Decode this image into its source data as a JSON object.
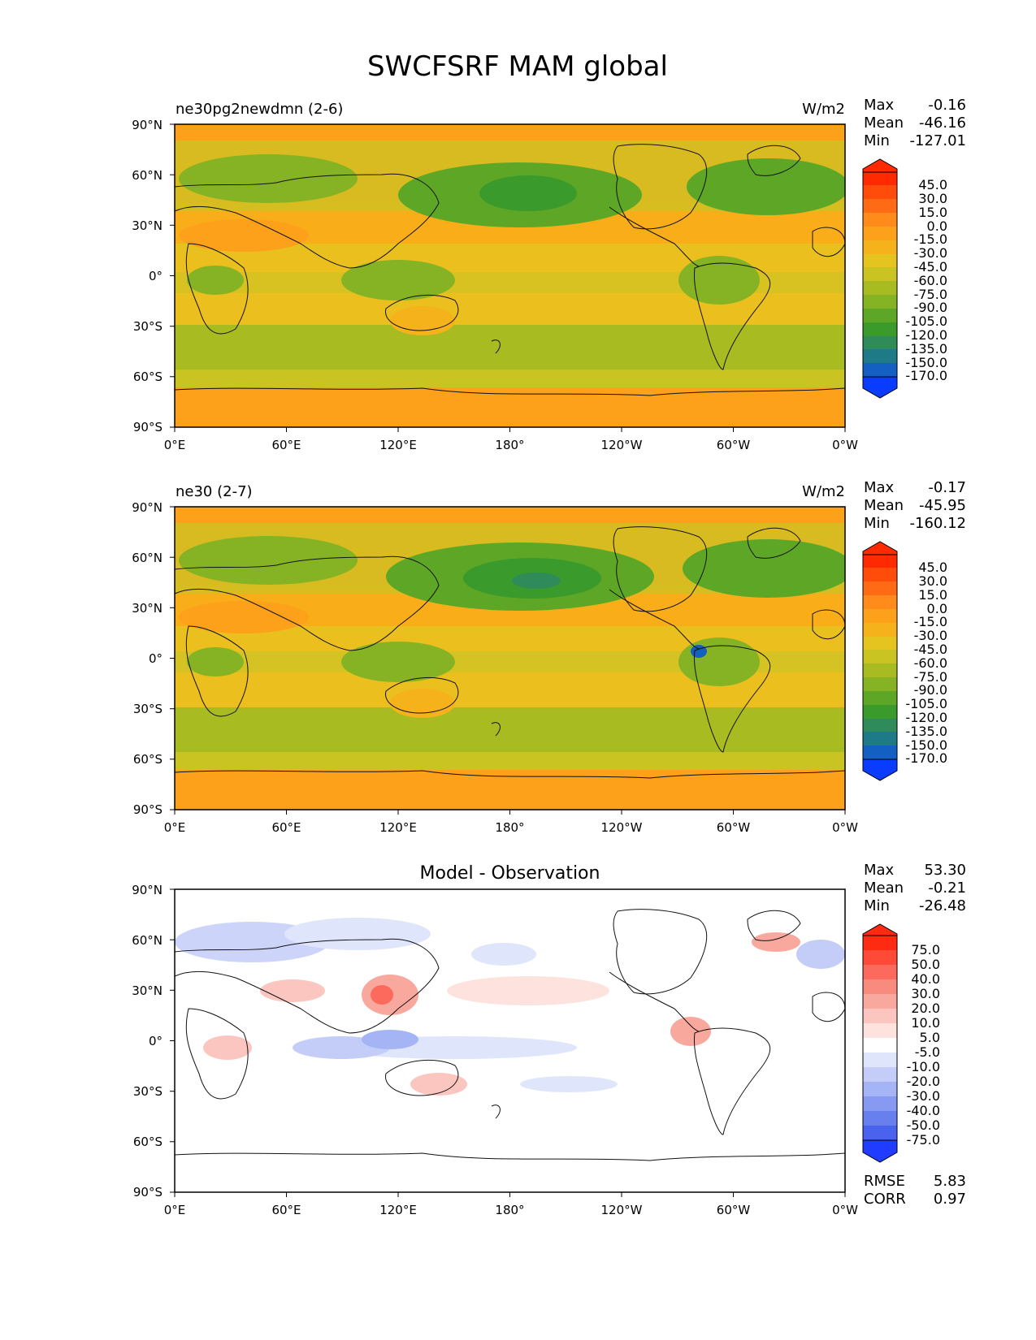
{
  "page": {
    "title": "SWCFSRF MAM global"
  },
  "chart_data": [
    {
      "type": "heatmap",
      "title": "ne30pg2newdmn (2-6)",
      "units": "W/m2",
      "stats": [
        {
          "label": "Max",
          "value": "-0.16"
        },
        {
          "label": "Mean",
          "value": "-46.16"
        },
        {
          "label": "Min",
          "value": "-127.01"
        }
      ],
      "xticks": [
        "0°E",
        "60°E",
        "120°E",
        "180°",
        "120°W",
        "60°W",
        "0°W"
      ],
      "yticks": [
        "90°N",
        "60°N",
        "30°N",
        "0°",
        "30°S",
        "60°S",
        "90°S"
      ],
      "xlim": [
        0,
        360
      ],
      "ylim": [
        -90,
        90
      ],
      "colorbar": {
        "levels": [
          "45.0",
          "30.0",
          "15.0",
          "0.0",
          "-15.0",
          "-30.0",
          "-45.0",
          "-60.0",
          "-75.0",
          "-90.0",
          "-105.0",
          "-120.0",
          "-135.0",
          "-150.0",
          "-170.0"
        ],
        "colors": [
          "#ff2a00",
          "#ff4c0a",
          "#ff6a14",
          "#ff8c1a",
          "#fda01a",
          "#f6b21a",
          "#e6c420",
          "#cac423",
          "#a8bc22",
          "#86b323",
          "#5ea726",
          "#3b9a2c",
          "#2f8c5a",
          "#1f7a88",
          "#1360c2",
          "#0a3cff"
        ]
      },
      "fill_scheme": "field"
    },
    {
      "type": "heatmap",
      "title": "ne30 (2-7)",
      "units": "W/m2",
      "stats": [
        {
          "label": "Max",
          "value": "-0.17"
        },
        {
          "label": "Mean",
          "value": "-45.95"
        },
        {
          "label": "Min",
          "value": "-160.12"
        }
      ],
      "xticks": [
        "0°E",
        "60°E",
        "120°E",
        "180°",
        "120°W",
        "60°W",
        "0°W"
      ],
      "yticks": [
        "90°N",
        "60°N",
        "30°N",
        "0°",
        "30°S",
        "60°S",
        "90°S"
      ],
      "xlim": [
        0,
        360
      ],
      "ylim": [
        -90,
        90
      ],
      "colorbar": {
        "levels": [
          "45.0",
          "30.0",
          "15.0",
          "0.0",
          "-15.0",
          "-30.0",
          "-45.0",
          "-60.0",
          "-75.0",
          "-90.0",
          "-105.0",
          "-120.0",
          "-135.0",
          "-150.0",
          "-170.0"
        ],
        "colors": [
          "#ff2a00",
          "#ff4c0a",
          "#ff6a14",
          "#ff8c1a",
          "#fda01a",
          "#f6b21a",
          "#e6c420",
          "#cac423",
          "#a8bc22",
          "#86b323",
          "#5ea726",
          "#3b9a2c",
          "#2f8c5a",
          "#1f7a88",
          "#1360c2",
          "#0a3cff"
        ]
      },
      "fill_scheme": "field"
    },
    {
      "type": "heatmap",
      "title": "Model - Observation",
      "units": "",
      "stats": [
        {
          "label": "Max",
          "value": "53.30"
        },
        {
          "label": "Mean",
          "value": "-0.21"
        },
        {
          "label": "Min",
          "value": "-26.48"
        }
      ],
      "extra_stats": [
        {
          "label": "RMSE",
          "value": "5.83"
        },
        {
          "label": "CORR",
          "value": "0.97"
        }
      ],
      "xticks": [
        "0°E",
        "60°E",
        "120°E",
        "180°",
        "120°W",
        "60°W",
        "0°W"
      ],
      "yticks": [
        "90°N",
        "60°N",
        "30°N",
        "0°",
        "30°S",
        "60°S",
        "90°S"
      ],
      "xlim": [
        0,
        360
      ],
      "ylim": [
        -90,
        90
      ],
      "colorbar": {
        "levels": [
          "75.0",
          "50.0",
          "40.0",
          "30.0",
          "20.0",
          "10.0",
          "5.0",
          "-5.0",
          "-10.0",
          "-20.0",
          "-30.0",
          "-40.0",
          "-50.0",
          "-75.0"
        ],
        "colors": [
          "#ff2a12",
          "#ff4a38",
          "#fb6a5c",
          "#f98a7e",
          "#f9a89e",
          "#fbc6bf",
          "#fde2de",
          "#ffffff",
          "#dfe5fb",
          "#c3cdf8",
          "#a5b4f4",
          "#8799f1",
          "#6880ee",
          "#4a63ef",
          "#1f3cff"
        ]
      },
      "fill_scheme": "diff"
    }
  ]
}
